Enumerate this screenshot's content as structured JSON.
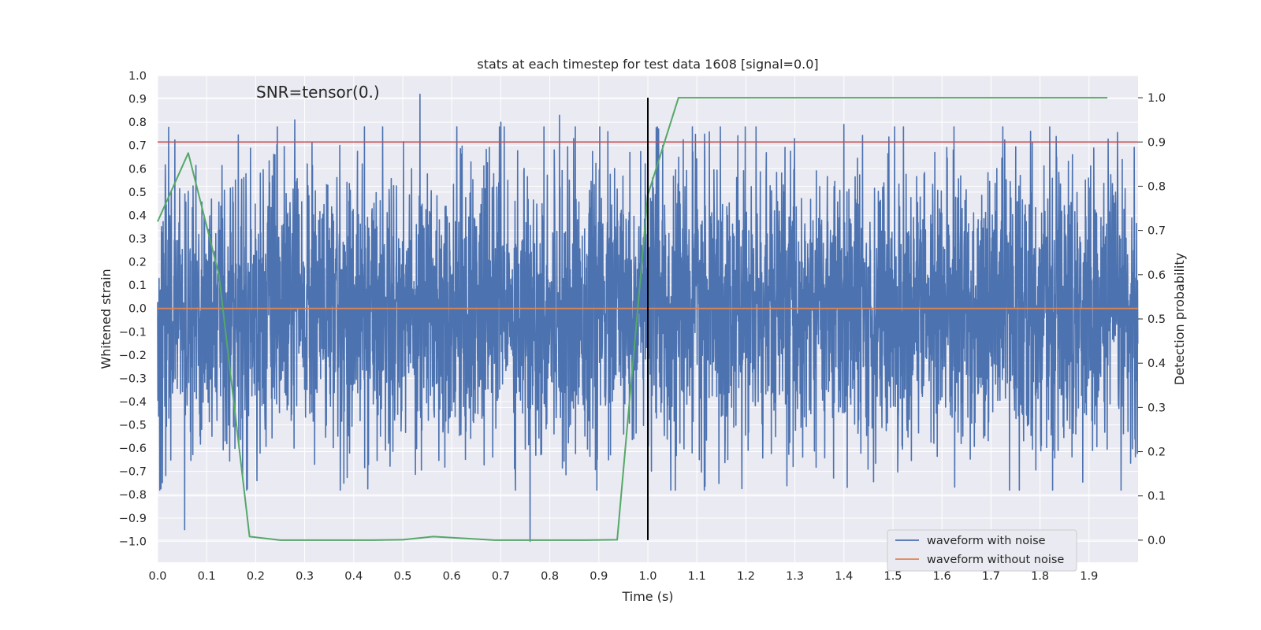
{
  "chart_data": {
    "type": "line",
    "title": "stats at each timestep for test data 1608 [signal=0.0]",
    "xlabel": "Time (s)",
    "ylabel": "Whitened strain",
    "y2label": "Detection probability",
    "annotation": "SNR=tensor(0.)",
    "xlim": [
      0.0,
      2.0
    ],
    "ylim": [
      -1.09,
      1.0
    ],
    "y2lim": [
      -0.05,
      1.05
    ],
    "x_ticks": [
      "0.0",
      "0.1",
      "0.2",
      "0.3",
      "0.4",
      "0.5",
      "0.6",
      "0.7",
      "0.8",
      "0.9",
      "1.0",
      "1.1",
      "1.2",
      "1.3",
      "1.4",
      "1.5",
      "1.6",
      "1.7",
      "1.8",
      "1.9"
    ],
    "y_ticks": [
      "1.0",
      "0.9",
      "0.8",
      "0.7",
      "0.6",
      "0.5",
      "0.4",
      "0.3",
      "0.2",
      "0.1",
      "0.0",
      "−0.1",
      "−0.2",
      "−0.3",
      "−0.4",
      "−0.5",
      "−0.6",
      "−0.7",
      "−0.8",
      "−0.9",
      "−1.0"
    ],
    "y2_ticks": [
      "1.0",
      "0.9",
      "0.8",
      "0.7",
      "0.6",
      "0.5",
      "0.4",
      "0.3",
      "0.2",
      "0.1",
      "0.0"
    ],
    "grid": true,
    "legend_position": "lower right",
    "series": [
      {
        "name": "waveform with noise",
        "axis": "left",
        "color": "#4c72b0",
        "sample_rate": 2048,
        "amplitude_std": 0.3,
        "peaks": [
          [
            0.055,
            -0.95
          ],
          [
            0.28,
            0.81
          ],
          [
            0.535,
            0.92
          ],
          [
            0.7,
            0.8
          ],
          [
            0.82,
            0.83
          ],
          [
            0.76,
            -1.0
          ],
          [
            1.4,
            0.79
          ],
          [
            1.82,
            0.78
          ]
        ]
      },
      {
        "name": "waveform without noise",
        "axis": "left",
        "color": "#dd8452",
        "x": [
          0.0,
          2.0
        ],
        "y": [
          0.0,
          0.0
        ]
      },
      {
        "axis": "right",
        "color": "#55a868",
        "x": [
          0.0,
          0.0625,
          0.125,
          0.1875,
          0.25,
          0.3125,
          0.375,
          0.4375,
          0.5,
          0.5625,
          0.625,
          0.6875,
          0.75,
          0.8125,
          0.875,
          0.9375,
          1.0,
          1.0625,
          1.125,
          1.1875,
          1.25,
          1.3125,
          1.375,
          1.4375,
          1.5,
          1.5625,
          1.625,
          1.6875,
          1.75,
          1.8125,
          1.875,
          1.9375
        ],
        "y": [
          0.72,
          0.875,
          0.6,
          0.008,
          0.0,
          0.0,
          0.0,
          0.0,
          0.001,
          0.008,
          0.004,
          0.0,
          0.0,
          0.0,
          0.0,
          0.001,
          0.78,
          1.0,
          1.0,
          1.0,
          1.0,
          1.0,
          1.0,
          1.0,
          1.0,
          1.0,
          1.0,
          1.0,
          1.0,
          1.0,
          1.0,
          1.0
        ]
      }
    ],
    "threshold": {
      "axis": "right",
      "y": 0.9,
      "color": "#c44e52"
    },
    "vline": {
      "x": 1.0,
      "y_range": [
        0.0,
        1.0
      ],
      "axis": "right",
      "color": "#000000"
    },
    "colors": {
      "background": "#eaeaf2",
      "grid": "#ffffff"
    }
  }
}
